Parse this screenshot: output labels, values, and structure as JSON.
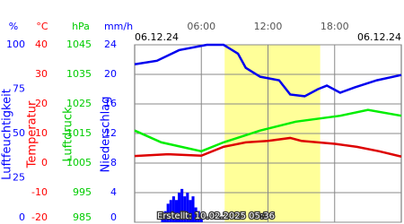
{
  "chart_data": {
    "type": "line",
    "date_start": "06.12.24",
    "date_end": "06.12.24",
    "footer": "Erstellt: 10.02.2025 05:36",
    "xlim": [
      0,
      24
    ],
    "xticks": [
      {
        "value": 6,
        "label": "06:00"
      },
      {
        "value": 12,
        "label": "12:00"
      },
      {
        "value": 18,
        "label": "18:00"
      }
    ],
    "daylight": [
      8.1,
      16.7
    ],
    "grid": true,
    "axes": [
      {
        "unit": "%",
        "label": "Luftfeuchtigkeit",
        "color": "#0000ff",
        "lim": [
          0,
          100
        ],
        "ticks": [
          0,
          25,
          50,
          75,
          100
        ]
      },
      {
        "unit": "°C",
        "label": "Temperatur",
        "color": "#ff0000",
        "lim": [
          -20,
          40
        ],
        "ticks": [
          -20,
          -10,
          0,
          10,
          20,
          30,
          40
        ]
      },
      {
        "unit": "hPa",
        "label": "Luftdruck",
        "color": "#00cc00",
        "lim": [
          985,
          1045
        ],
        "ticks": [
          985,
          995,
          1005,
          1015,
          1025,
          1035,
          1045
        ]
      },
      {
        "unit": "mm/h",
        "label": "Niederschlag",
        "color": "#0000ff",
        "lim": [
          0,
          24
        ],
        "ticks": [
          0,
          4,
          8,
          12,
          16,
          20,
          24
        ]
      }
    ],
    "series": [
      {
        "type": "bar",
        "axis": 3,
        "color": "#0000ff",
        "x": [
          2.5,
          2.75,
          3,
          3.25,
          3.5,
          3.75,
          4,
          4.25,
          4.5,
          4.75,
          5,
          5.25,
          5.5,
          5.75,
          6
        ],
        "values": [
          0.5,
          1.5,
          2.5,
          3,
          3.5,
          3,
          4,
          4.5,
          3.5,
          4,
          3,
          3.5,
          2,
          1.5,
          0.5
        ]
      },
      {
        "type": "line",
        "axis": 0,
        "color": "#0000ee",
        "x": [
          0,
          2,
          4,
          6.5,
          8,
          9.3,
          10,
          11.3,
          13,
          14,
          15.3,
          16.5,
          17.3,
          18.5,
          19.8,
          21.8,
          24
        ],
        "values": [
          89,
          91,
          97,
          100,
          100,
          95,
          87,
          82,
          80,
          72,
          71,
          75,
          77,
          73,
          76,
          80,
          83
        ]
      },
      {
        "type": "line",
        "axis": 2,
        "color": "#00ee00",
        "x": [
          0,
          2.4,
          6,
          8,
          11.3,
          14.5,
          18.5,
          21,
          24
        ],
        "values": [
          1016,
          1012,
          1009,
          1012,
          1016,
          1019,
          1021,
          1023,
          1021
        ]
      },
      {
        "type": "line",
        "axis": 1,
        "color": "#dd0000",
        "x": [
          0,
          3,
          6,
          8,
          10,
          12,
          14,
          15,
          18,
          20,
          22,
          24
        ],
        "values": [
          2.4,
          3,
          2.5,
          5.5,
          7,
          7.5,
          8.5,
          7.5,
          6.5,
          5.5,
          4,
          2.2
        ]
      }
    ]
  }
}
